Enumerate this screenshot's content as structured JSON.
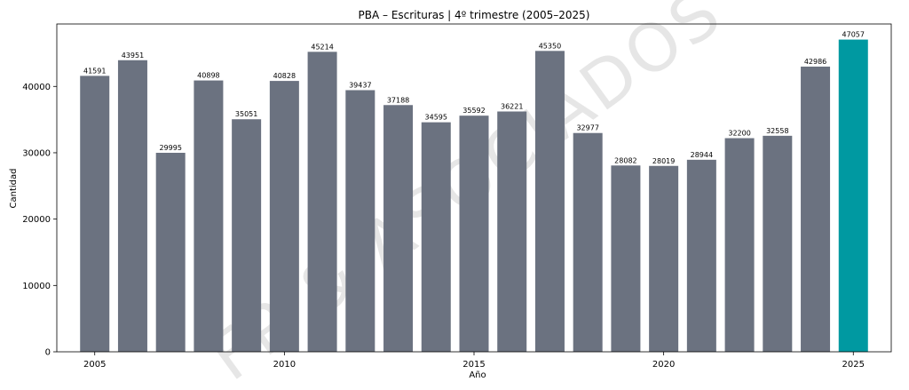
{
  "chart_data": {
    "type": "bar",
    "title": "PBA – Escrituras | 4º trimestre (2005–2025)",
    "xlabel": "Año",
    "ylabel": "Cantidad",
    "categories": [
      2005,
      2006,
      2007,
      2008,
      2009,
      2010,
      2011,
      2012,
      2013,
      2014,
      2015,
      2016,
      2017,
      2018,
      2019,
      2020,
      2021,
      2022,
      2023,
      2024,
      2025
    ],
    "values": [
      41591,
      43951,
      29995,
      40898,
      35051,
      40828,
      45214,
      39437,
      37188,
      34595,
      35592,
      36221,
      45350,
      32977,
      28082,
      28019,
      28944,
      32200,
      32558,
      42986,
      47057
    ],
    "xticks": [
      2005,
      2010,
      2015,
      2020,
      2025
    ],
    "yticks": [
      0,
      10000,
      20000,
      30000,
      40000
    ],
    "ylim": [
      0,
      49410
    ],
    "xlim": [
      2004.0,
      2026.0
    ],
    "grid": false,
    "bar_color": "#6b7280",
    "highlight_color": "#0099a1",
    "highlight_category": 2025
  },
  "watermark": "FP & ASOCIADOS"
}
